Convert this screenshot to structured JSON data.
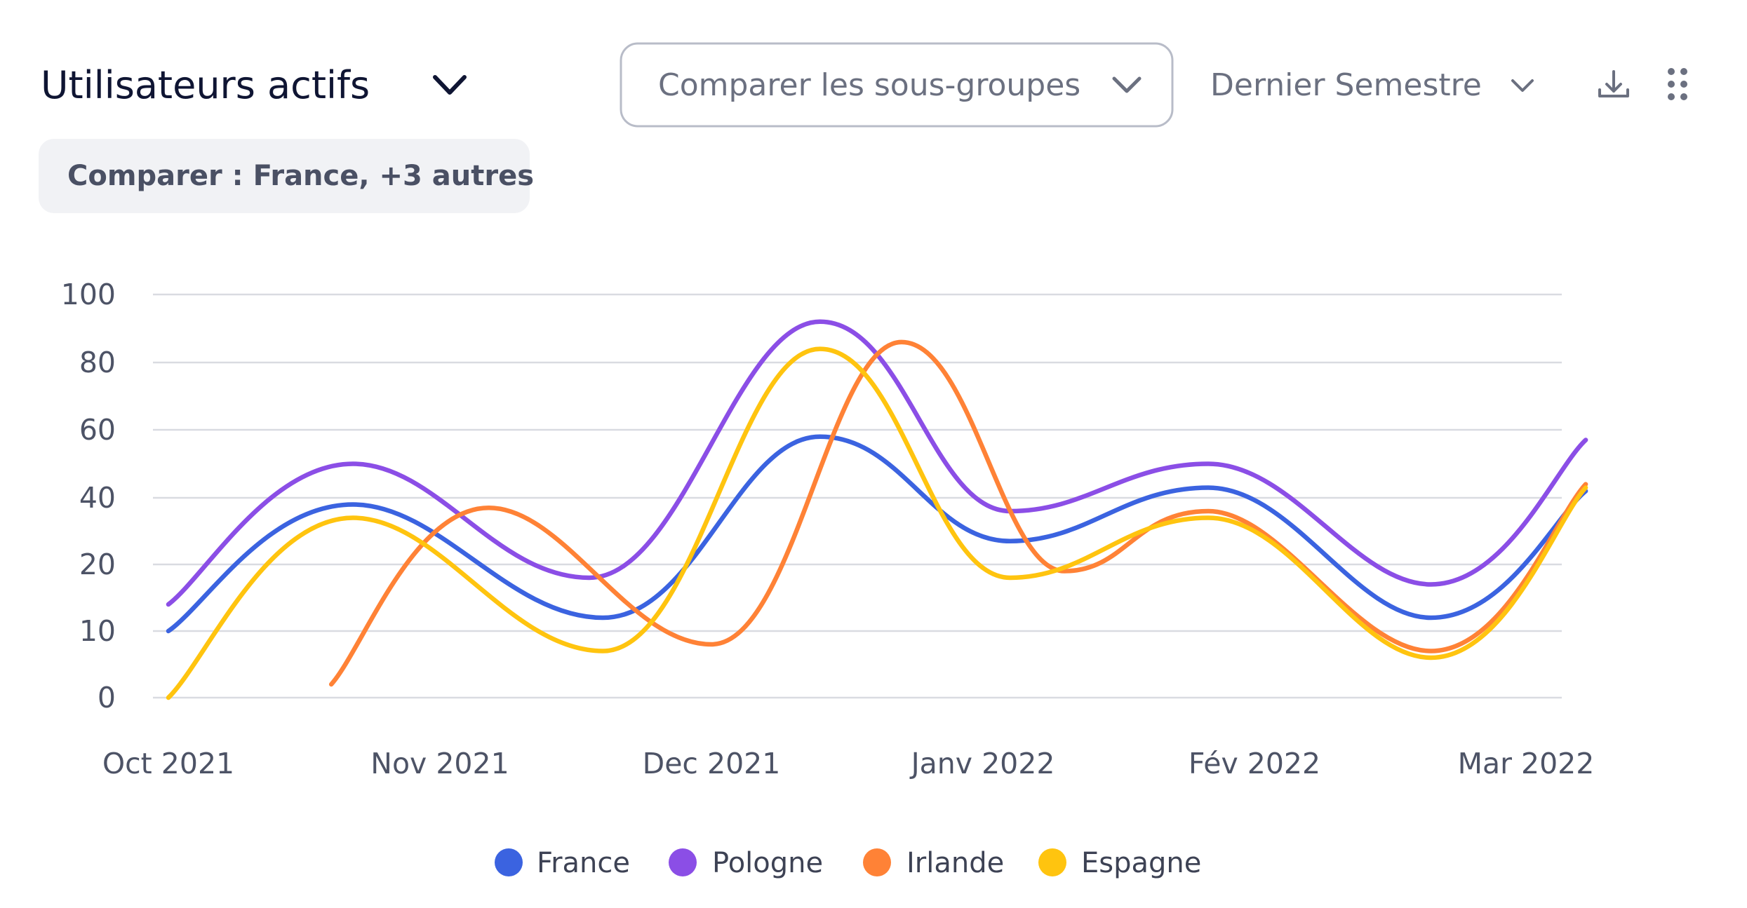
{
  "header": {
    "title": "Utilisateurs actifs",
    "compare_dropdown": "Comparer les sous-groupes",
    "period_dropdown": "Dernier Semestre",
    "compare_chip": "Comparer : France, +3 autres"
  },
  "icons": {
    "title_dropdown": "chevron-down-icon",
    "compare_dropdown": "chevron-down-icon",
    "period_dropdown": "chevron-down-icon",
    "download": "download-icon",
    "menu": "drag-handle-icon"
  },
  "chart_data": {
    "type": "line",
    "smooth": true,
    "x_categories": [
      "Oct 2021",
      "Nov 2021",
      "Dec 2021",
      "Janv 2022",
      "Fév 2022",
      "Mar 2022"
    ],
    "y_ticks": [
      0,
      10,
      20,
      40,
      60,
      80,
      100
    ],
    "ylim": [
      0,
      100
    ],
    "grid": true,
    "legend_position": "bottom-center",
    "series": [
      {
        "name": "France",
        "color": "#3b63e0",
        "points": [
          [
            0,
            10
          ],
          [
            0.68,
            38
          ],
          [
            1.6,
            12
          ],
          [
            2.4,
            58
          ],
          [
            3.1,
            27
          ],
          [
            3.83,
            43
          ],
          [
            4.65,
            12
          ],
          [
            5.22,
            42
          ]
        ]
      },
      {
        "name": "Pologne",
        "color": "#8b4ee6",
        "points": [
          [
            0,
            14
          ],
          [
            0.68,
            50
          ],
          [
            1.55,
            18
          ],
          [
            2.4,
            92
          ],
          [
            3.1,
            36
          ],
          [
            3.83,
            50
          ],
          [
            4.65,
            17
          ],
          [
            5.22,
            57
          ]
        ]
      },
      {
        "name": "Irlande",
        "color": "#ff8236",
        "points": [
          [
            0.6,
            2
          ],
          [
            1.18,
            37
          ],
          [
            2.0,
            8
          ],
          [
            2.7,
            86
          ],
          [
            3.3,
            19
          ],
          [
            3.83,
            36
          ],
          [
            4.65,
            7
          ],
          [
            5.22,
            44
          ]
        ]
      },
      {
        "name": "Espagne",
        "color": "#ffc40f",
        "points": [
          [
            0,
            0
          ],
          [
            0.68,
            34
          ],
          [
            1.6,
            7
          ],
          [
            2.4,
            84
          ],
          [
            3.1,
            18
          ],
          [
            3.83,
            34
          ],
          [
            4.65,
            6
          ],
          [
            5.22,
            43
          ]
        ]
      }
    ]
  }
}
